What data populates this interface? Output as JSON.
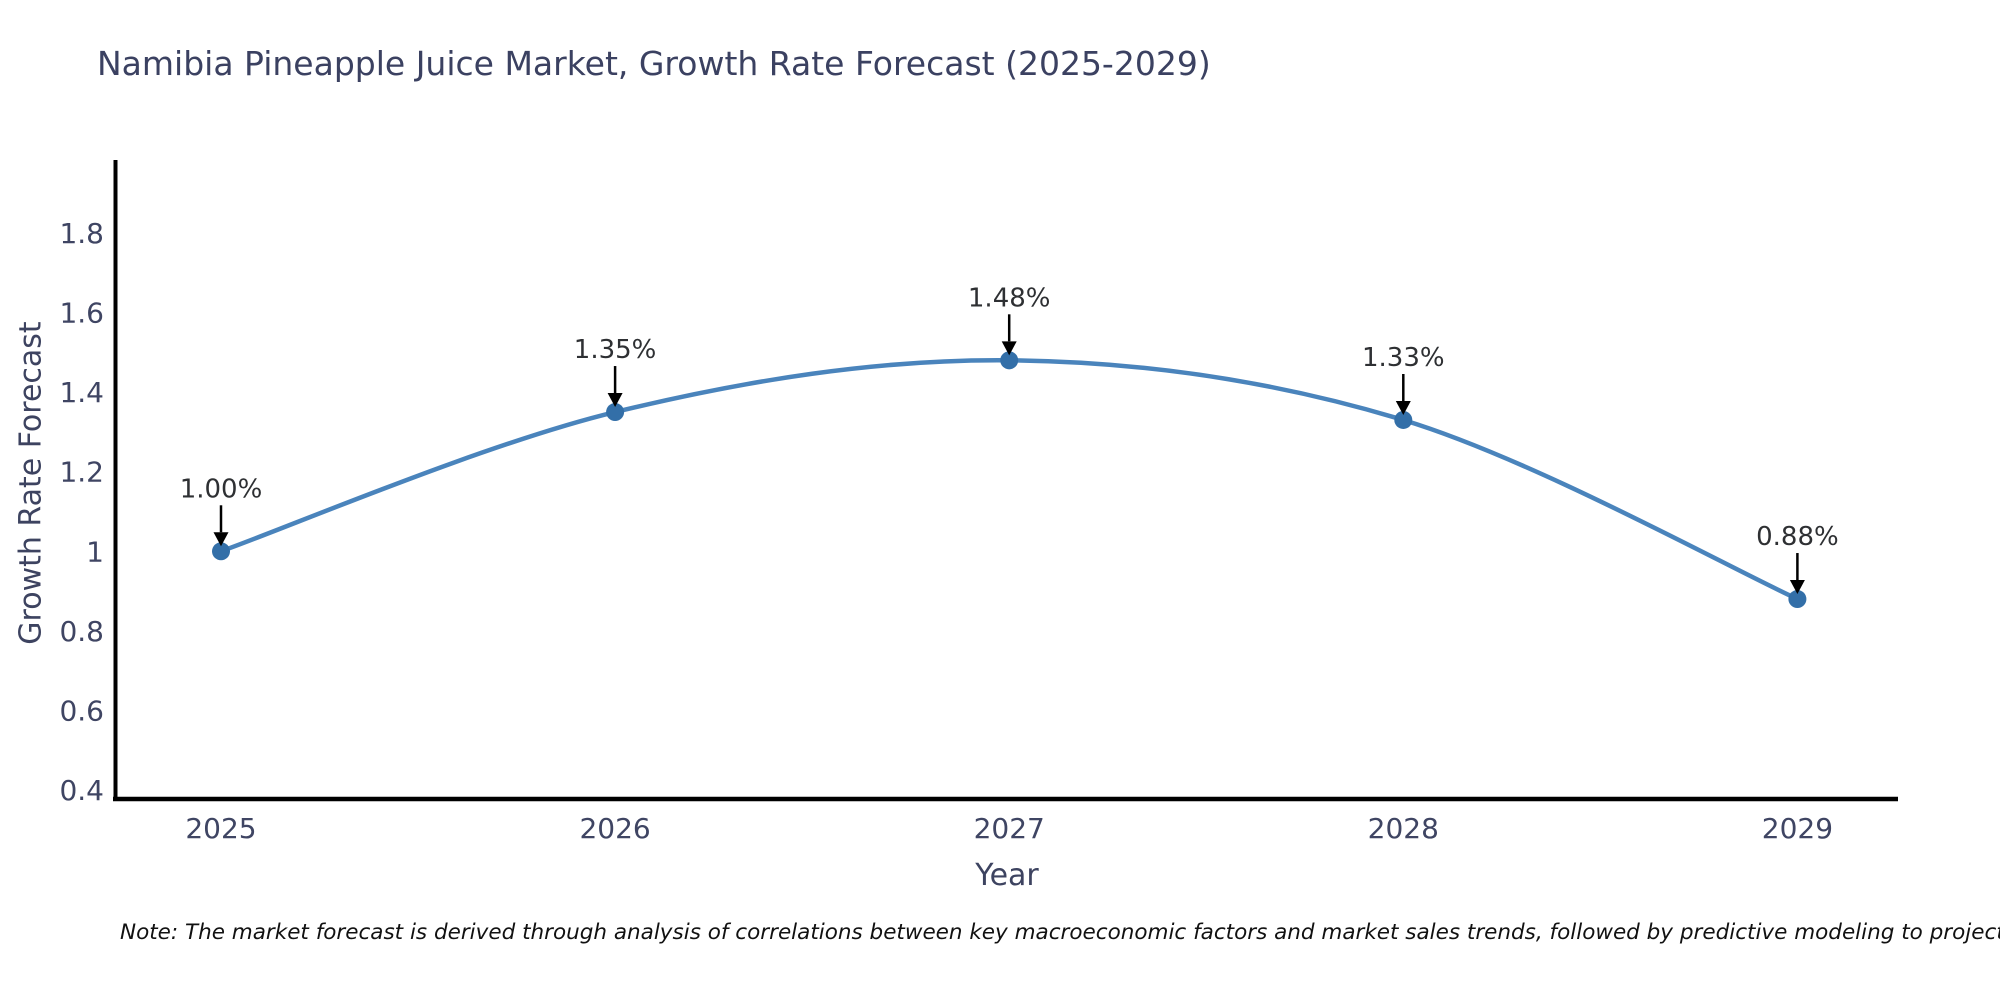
{
  "page": {
    "background": "#ffffff"
  },
  "note": "Note: The market forecast is derived through analysis of correlations between key macroeconomic factors and market sales trends, followed by predictive modeling to project future sales",
  "chart_data": {
    "type": "line",
    "title": "Namibia Pineapple Juice Market, Growth Rate Forecast (2025-2029)",
    "xlabel": "Year",
    "ylabel": "Growth Rate Forecast",
    "categories": [
      "2025",
      "2026",
      "2027",
      "2028",
      "2029"
    ],
    "series": [
      {
        "name": "Growth Rate Forecast",
        "values": [
          1.0,
          1.35,
          1.48,
          1.33,
          0.88
        ],
        "point_labels": [
          "1.00%",
          "1.35%",
          "1.48%",
          "1.33%",
          "0.88%"
        ]
      }
    ],
    "ytick_labels": [
      "0.4",
      "0.6",
      "0.8",
      "1",
      "1.2",
      "1.4",
      "1.6",
      "1.8"
    ],
    "yticks": [
      0.4,
      0.6,
      0.8,
      1.0,
      1.2,
      1.4,
      1.6,
      1.8
    ],
    "ylim": [
      0.37,
      1.98
    ],
    "grid": false,
    "legend": "none",
    "line_shape": "spline",
    "marker": "circle",
    "annotation_arrows": true,
    "colors": {
      "line": "#4a84bc",
      "marker": "#336fa8",
      "axis": "#000000",
      "arrow": "#000000",
      "title_text": "#3b4161",
      "tick_text": "#3f4563",
      "annotation_text": "#2e3033",
      "note_text": "#111111"
    }
  }
}
